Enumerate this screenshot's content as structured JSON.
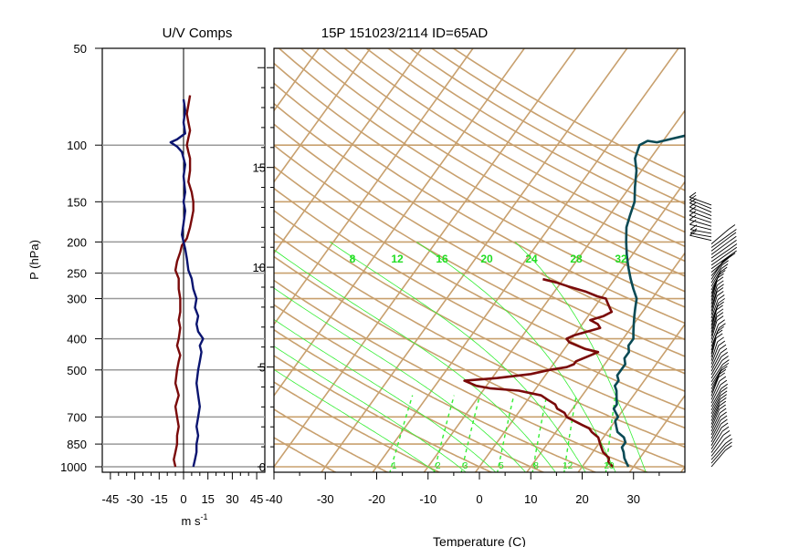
{
  "left_panel": {
    "title": "U/V Comps",
    "ylabel": "P (hPa)",
    "xlabel": "m s",
    "xlabel_sup": "-1"
  },
  "right_panel": {
    "title": "15P 151023/2114 ID=65AD",
    "xlabel": "Temperature (C)"
  },
  "colors": {
    "u_wind": "#7a0a0a",
    "v_wind": "#0a1470",
    "temperature": "#7a0a0a",
    "dewpoint": "#0a4a55",
    "background_lines": "#c8a06e",
    "mixing_ratio": "#33ee33",
    "pressure_grid": "#999999"
  },
  "chart_data": [
    {
      "type": "line",
      "title": "U/V Comps",
      "xlabel": "m s-1",
      "ylabel": "P (hPa)",
      "y_scale": "log",
      "ylim": [
        1000,
        50
      ],
      "xlim": [
        -50,
        50
      ],
      "x_ticks": [
        -45,
        -30,
        -15,
        0,
        15,
        30,
        45
      ],
      "y_ticks": [
        50,
        100,
        150,
        200,
        250,
        300,
        400,
        500,
        700,
        850,
        1000
      ],
      "alt_y_ticks": [
        0,
        5,
        10,
        15
      ],
      "series": [
        {
          "key": "u",
          "color": "#7a0a0a",
          "points": [
            [
              -5,
              1000
            ],
            [
              -6,
              950
            ],
            [
              -5,
              900
            ],
            [
              -4,
              850
            ],
            [
              -4,
              800
            ],
            [
              -3,
              750
            ],
            [
              -4,
              700
            ],
            [
              -5,
              650
            ],
            [
              -3,
              600
            ],
            [
              -5,
              550
            ],
            [
              -4,
              500
            ],
            [
              -3,
              470
            ],
            [
              -2,
              450
            ],
            [
              -4,
              420
            ],
            [
              -3,
              400
            ],
            [
              -2,
              370
            ],
            [
              -3,
              350
            ],
            [
              -2,
              330
            ],
            [
              -2,
              300
            ],
            [
              -3,
              280
            ],
            [
              -3,
              260
            ],
            [
              -5,
              245
            ],
            [
              -4,
              230
            ],
            [
              -2,
              215
            ],
            [
              -1,
              205
            ],
            [
              2,
              195
            ],
            [
              4,
              180
            ],
            [
              5,
              170
            ],
            [
              6,
              160
            ],
            [
              6,
              150
            ],
            [
              5,
              140
            ],
            [
              3,
              130
            ],
            [
              4,
              120
            ],
            [
              4,
              110
            ],
            [
              3,
              105
            ],
            [
              2,
              100
            ],
            [
              3,
              95
            ],
            [
              4,
              90
            ],
            [
              3,
              85
            ],
            [
              2,
              80
            ],
            [
              3,
              75
            ],
            [
              4,
              70
            ]
          ]
        },
        {
          "key": "v",
          "color": "#0a1470",
          "points": [
            [
              6,
              1000
            ],
            [
              7,
              950
            ],
            [
              8,
              900
            ],
            [
              8,
              850
            ],
            [
              9,
              800
            ],
            [
              8,
              750
            ],
            [
              9,
              700
            ],
            [
              10,
              650
            ],
            [
              9,
              600
            ],
            [
              8,
              550
            ],
            [
              9,
              500
            ],
            [
              10,
              470
            ],
            [
              11,
              440
            ],
            [
              10,
              420
            ],
            [
              12,
              400
            ],
            [
              9,
              380
            ],
            [
              8,
              360
            ],
            [
              9,
              340
            ],
            [
              7,
              320
            ],
            [
              8,
              300
            ],
            [
              6,
              280
            ],
            [
              5,
              260
            ],
            [
              3,
              245
            ],
            [
              2,
              225
            ],
            [
              1,
              210
            ],
            [
              0,
              200
            ],
            [
              -1,
              190
            ],
            [
              0,
              175
            ],
            [
              1,
              160
            ],
            [
              0,
              150
            ],
            [
              1,
              140
            ],
            [
              0,
              125
            ],
            [
              1,
              115
            ],
            [
              -1,
              105
            ],
            [
              -4,
              101
            ],
            [
              -8,
              98
            ],
            [
              -4,
              96
            ],
            [
              1,
              92
            ],
            [
              0,
              85
            ],
            [
              1,
              78
            ],
            [
              0,
              72
            ]
          ]
        }
      ]
    },
    {
      "type": "line",
      "title": "15P 151023/2114 ID=65AD",
      "xlabel": "Temperature (C)",
      "ylabel": "",
      "y_scale": "log",
      "ylim": [
        1000,
        50
      ],
      "xlim": [
        -40,
        40
      ],
      "x_ticks": [
        -40,
        -30,
        -20,
        -10,
        0,
        10,
        20,
        30
      ],
      "mixing_ratio_labels": [
        "8",
        "12",
        "16",
        "20",
        "24",
        "28",
        "32"
      ],
      "mixing_ratio_bottom_labels": [
        "1",
        "2",
        "3",
        "5",
        "8",
        "12",
        "20"
      ],
      "series": [
        {
          "key": "temperature",
          "color": "#7a0a0a",
          "points": [
            [
              26,
              1000
            ],
            [
              24.5,
              970
            ],
            [
              24,
              940
            ],
            [
              22,
              900
            ],
            [
              21,
              870
            ],
            [
              20,
              840
            ],
            [
              19,
              810
            ],
            [
              17,
              780
            ],
            [
              16,
              760
            ],
            [
              14,
              740
            ],
            [
              12,
              720
            ],
            [
              10,
              700
            ],
            [
              9,
              680
            ],
            [
              7,
              660
            ],
            [
              6,
              640
            ],
            [
              4,
              620
            ],
            [
              2,
              600
            ],
            [
              -3,
              580
            ],
            [
              -9,
              570
            ],
            [
              -12,
              560
            ],
            [
              -15,
              540
            ],
            [
              -9,
              530
            ],
            [
              -3,
              515
            ],
            [
              0,
              500
            ],
            [
              3,
              490
            ],
            [
              4,
              480
            ],
            [
              4,
              470
            ],
            [
              6,
              450
            ],
            [
              7,
              440
            ],
            [
              4,
              430
            ],
            [
              2,
              420
            ],
            [
              0,
              410
            ],
            [
              -1,
              400
            ],
            [
              0,
              390
            ],
            [
              2,
              380
            ],
            [
              4,
              370
            ],
            [
              3,
              360
            ],
            [
              1,
              350
            ],
            [
              3,
              340
            ],
            [
              4,
              330
            ],
            [
              3,
              320
            ],
            [
              2,
              310
            ],
            [
              1,
              300
            ],
            [
              -1,
              295
            ],
            [
              -4,
              285
            ],
            [
              -8,
              275
            ],
            [
              -11,
              267
            ],
            [
              -14,
              261
            ]
          ]
        },
        {
          "key": "dewpoint",
          "color": "#0a4a55",
          "points": [
            [
              29,
              1000
            ],
            [
              28,
              970
            ],
            [
              27,
              940
            ],
            [
              26,
              900
            ],
            [
              25,
              870
            ],
            [
              25,
              840
            ],
            [
              24,
              810
            ],
            [
              22,
              780
            ],
            [
              21,
              750
            ],
            [
              20,
              720
            ],
            [
              20,
              700
            ],
            [
              19,
              680
            ],
            [
              18,
              660
            ],
            [
              18,
              640
            ],
            [
              17,
              610
            ],
            [
              16,
              580
            ],
            [
              15,
              560
            ],
            [
              15,
              540
            ],
            [
              14,
              520
            ],
            [
              14,
              500
            ],
            [
              14,
              480
            ],
            [
              13,
              460
            ],
            [
              13,
              440
            ],
            [
              12,
              420
            ],
            [
              12,
              400
            ],
            [
              11,
              380
            ],
            [
              10,
              360
            ],
            [
              9,
              340
            ],
            [
              8,
              320
            ],
            [
              7,
              300
            ],
            [
              5,
              280
            ],
            [
              3,
              260
            ],
            [
              1,
              240
            ],
            [
              -1,
              220
            ],
            [
              -3,
              200
            ],
            [
              -5,
              180
            ],
            [
              -6,
              165
            ],
            [
              -7,
              150
            ],
            [
              -9,
              135
            ],
            [
              -11,
              120
            ],
            [
              -13,
              110
            ],
            [
              -14,
              100
            ],
            [
              -13,
              97
            ],
            [
              -11,
              98
            ],
            [
              -9,
              96
            ],
            [
              -7,
              94
            ],
            [
              -5,
              92
            ],
            [
              -3,
              90
            ],
            [
              -1,
              88
            ],
            [
              0,
              85
            ],
            [
              2,
              82
            ],
            [
              3,
              80
            ],
            [
              5,
              77
            ],
            [
              6,
              75
            ],
            [
              7,
              72
            ],
            [
              9,
              70
            ],
            [
              11,
              68
            ],
            [
              13,
              66
            ],
            [
              15,
              65
            ]
          ]
        }
      ]
    }
  ]
}
